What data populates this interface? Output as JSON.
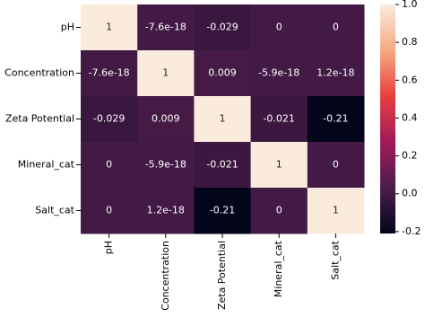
{
  "chart_data": {
    "type": "heatmap",
    "categories": [
      "pH",
      "Concentration",
      "Zeta Potential",
      "Mineral_cat",
      "Salt_cat"
    ],
    "values": [
      [
        1,
        -7.6e-18,
        -0.029,
        0,
        0
      ],
      [
        -7.6e-18,
        1,
        0.009,
        -5.9e-18,
        1.2e-18
      ],
      [
        -0.029,
        0.009,
        1,
        -0.021,
        -0.21
      ],
      [
        0,
        -5.9e-18,
        -0.021,
        1,
        0
      ],
      [
        0,
        1.2e-18,
        -0.21,
        0,
        1
      ]
    ],
    "colormap": [
      "#03051a",
      "#4c1d4b",
      "#a11a5b",
      "#e83f3f",
      "#f6aa82",
      "#faebdd"
    ],
    "clim": [
      -0.21,
      1
    ],
    "cticks": [
      {
        "value": 1.0,
        "label": "1.0"
      },
      0.8,
      0.6,
      0.4,
      0.2,
      {
        "value": 0.0,
        "label": "0.0"
      },
      -0.2
    ]
  }
}
